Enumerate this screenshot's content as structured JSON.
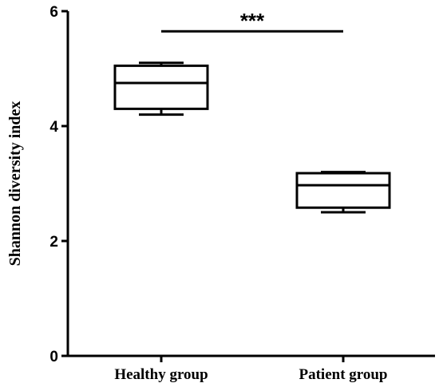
{
  "chart_data": {
    "type": "box",
    "ylabel": "Shannon diversity index",
    "ylim": [
      0,
      6
    ],
    "yticks": [
      "0",
      "2",
      "4",
      "6"
    ],
    "categories": [
      "Healthy group",
      "Patient group"
    ],
    "boxes": [
      {
        "name": "Healthy group",
        "min": 4.2,
        "q1": 4.3,
        "median": 4.75,
        "q3": 5.05,
        "max": 5.1
      },
      {
        "name": "Patient group",
        "min": 2.5,
        "q1": 2.58,
        "median": 2.97,
        "q3": 3.18,
        "max": 3.2
      }
    ],
    "significance": {
      "label": "***",
      "between": [
        "Healthy group",
        "Patient group"
      ],
      "y": 5.65
    },
    "grid": false
  }
}
